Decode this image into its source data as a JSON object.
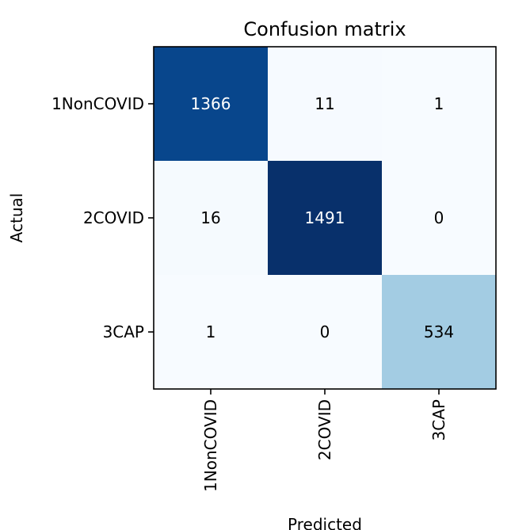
{
  "chart_data": {
    "type": "heatmap",
    "title": "Confusion matrix",
    "xlabel": "Predicted",
    "ylabel": "Actual",
    "x_categories": [
      "1NonCOVID",
      "2COVID",
      "3CAP"
    ],
    "y_categories": [
      "1NonCOVID",
      "2COVID",
      "3CAP"
    ],
    "values": [
      [
        1366,
        11,
        1
      ],
      [
        16,
        1491,
        0
      ],
      [
        1,
        0,
        534
      ]
    ],
    "colormap": "Blues",
    "grid": false
  }
}
